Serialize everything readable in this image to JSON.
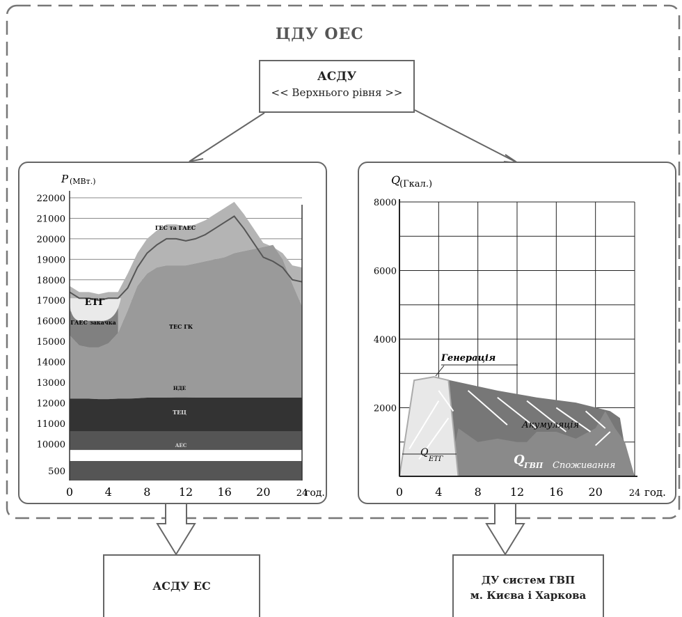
{
  "title": "ЦДУ ОЕС",
  "top_box": {
    "line1": "АСДУ",
    "line2": "<< Верхнього рівня >>"
  },
  "bottom_left_box": "АСДУ ЕС",
  "bottom_right_box": {
    "line1": "ДУ систем ГВП",
    "line2": "м. Києва і Харкова"
  },
  "colors": {
    "frame": "#777777",
    "hatch": "#ffffff"
  },
  "chart_data": [
    {
      "type": "area",
      "ylabel_symbol": "P",
      "ylabel_unit": "(МВт.)",
      "xlabel": "год.",
      "x_ticks": [
        "0",
        "4",
        "8",
        "12",
        "16",
        "20",
        "24"
      ],
      "y_ticks": [
        "22000",
        "21000",
        "20000",
        "19000",
        "18000",
        "17000",
        "16000",
        "15000",
        "14000",
        "13000",
        "12000",
        "11000",
        "10000"
      ],
      "y_extra_tick": "500",
      "ylim": [
        9500,
        22000
      ],
      "xlim": [
        0,
        24
      ],
      "layers": [
        {
          "name": "АЕС",
          "color": "#555555"
        },
        {
          "name": "ТЕЦ",
          "color": "#333333"
        },
        {
          "name": "НДЕ",
          "color": "#2b2b2b"
        },
        {
          "name": "ТЕС ГК",
          "color": "#9a9a9a"
        },
        {
          "name": "ГЕС та ГАЕС",
          "color": "#b4b4b4"
        },
        {
          "name": "ЕТГ",
          "color": "#eaeaea"
        },
        {
          "name": "ГАЕС закачка",
          "color": "#7a7a7a"
        }
      ],
      "x": [
        0,
        1,
        2,
        3,
        4,
        5,
        6,
        7,
        8,
        9,
        10,
        11,
        12,
        13,
        14,
        15,
        16,
        17,
        18,
        19,
        20,
        21,
        22,
        23,
        24
      ],
      "aes": [
        10600,
        10600,
        10600,
        10600,
        10600,
        10600,
        10600,
        10600,
        10600,
        10600,
        10600,
        10600,
        10600,
        10600,
        10600,
        10600,
        10600,
        10600,
        10600,
        10600,
        10600,
        10600,
        10600,
        10600,
        10600
      ],
      "tec": [
        12200,
        12200,
        12200,
        12180,
        12180,
        12200,
        12200,
        12220,
        12250,
        12250,
        12250,
        12260,
        12260,
        12250,
        12250,
        12250,
        12250,
        12250,
        12250,
        12250,
        12250,
        12250,
        12250,
        12250,
        12250
      ],
      "tes": [
        15300,
        14800,
        14700,
        14700,
        14900,
        15400,
        16500,
        17700,
        18300,
        18600,
        18700,
        18700,
        18700,
        18800,
        18900,
        19000,
        19100,
        19300,
        19400,
        19500,
        19600,
        19700,
        19000,
        17800,
        16700
      ],
      "ges": [
        17700,
        17400,
        17400,
        17300,
        17400,
        17400,
        18300,
        19300,
        20000,
        20400,
        20700,
        20700,
        20600,
        20700,
        20900,
        21200,
        21500,
        21800,
        21200,
        20500,
        19800,
        19600,
        19300,
        18700,
        18600
      ],
      "gae": [
        16500,
        16100,
        16100,
        16100,
        16200,
        16700
      ],
      "etg_top": [
        17100,
        17100,
        17100,
        17100,
        17100
      ],
      "etg_label": "ЕТГ",
      "gae_label": "ГАЕС закачка"
    },
    {
      "type": "area",
      "ylabel_symbol": "Q",
      "ylabel_unit": "(Гкал.)",
      "xlabel": "год.",
      "x_ticks": [
        "0",
        "4",
        "8",
        "12",
        "16",
        "20",
        "24"
      ],
      "y_ticks": [
        "8000",
        "6000",
        "4000",
        "2000"
      ],
      "ylim": [
        0,
        8000
      ],
      "xlim": [
        0,
        24
      ],
      "annotations": [
        "Генерація",
        "Акумуляція",
        "ЕТГ",
        "ГВП",
        "Споживання"
      ],
      "generation": [
        [
          0,
          0
        ],
        [
          1.5,
          2800
        ],
        [
          3.5,
          2900
        ],
        [
          5,
          2800
        ],
        [
          6,
          0
        ]
      ],
      "accumulation_top": [
        [
          3.5,
          2900
        ],
        [
          6,
          2750
        ],
        [
          10,
          2500
        ],
        [
          14,
          2300
        ],
        [
          18,
          2150
        ],
        [
          21.5,
          1900
        ],
        [
          22.5,
          1700
        ],
        [
          23.5,
          0
        ]
      ],
      "consumption": [
        [
          5,
          0
        ],
        [
          6,
          1400
        ],
        [
          8,
          1000
        ],
        [
          10,
          1100
        ],
        [
          12,
          1000
        ],
        [
          13,
          1000
        ],
        [
          14,
          1300
        ],
        [
          16,
          1300
        ],
        [
          18,
          1100
        ],
        [
          20,
          1400
        ],
        [
          21,
          1900
        ],
        [
          22,
          1400
        ],
        [
          23,
          1000
        ],
        [
          24,
          0
        ]
      ]
    }
  ]
}
